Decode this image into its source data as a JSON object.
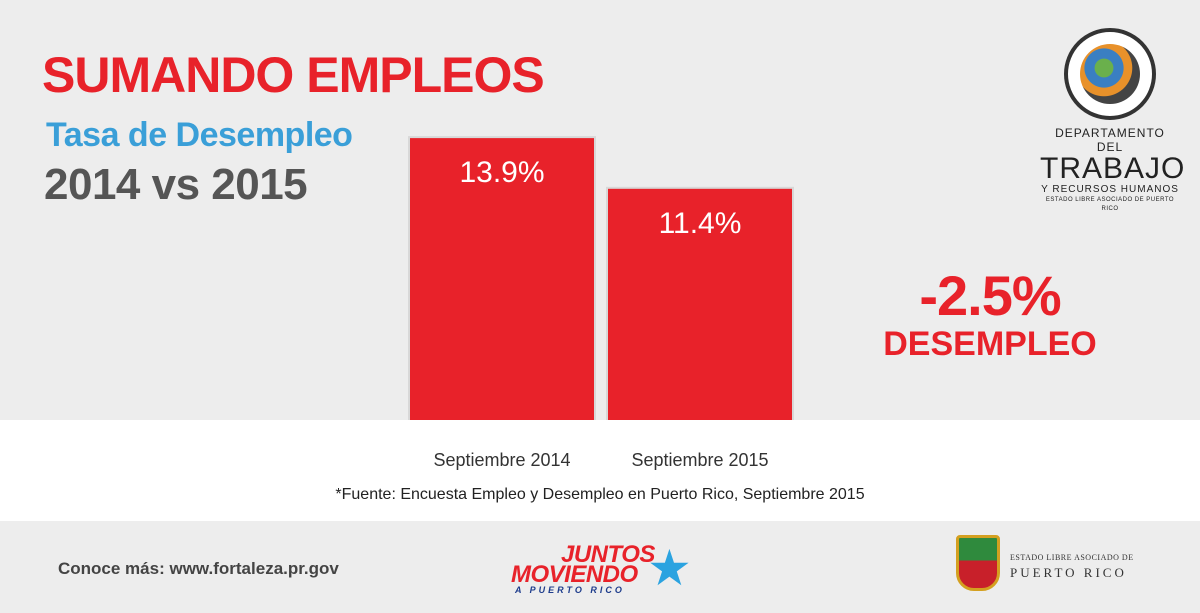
{
  "header": {
    "title": "SUMANDO EMPLEOS",
    "subtitle": "Tasa de Desempleo",
    "years": "2014 vs 2015"
  },
  "chart_data": {
    "type": "bar",
    "categories": [
      "Septiembre 2014",
      "Septiembre 2015"
    ],
    "values": [
      13.9,
      11.4
    ],
    "value_labels": [
      "13.9%",
      "11.4%"
    ],
    "title": "Tasa de Desempleo",
    "ylim": [
      0,
      14.3
    ],
    "grid": false,
    "bar_color": "#e8222a"
  },
  "callout": {
    "value": "-2.5%",
    "label": "DESEMPLEO"
  },
  "source": "*Fuente: Encuesta Empleo y Desempleo en Puerto Rico, Septiembre 2015",
  "footer": {
    "more": "Conoce más: www.fortaleza.pr.gov",
    "juntos_line1": "JUNTOS",
    "juntos_line2": "MOVIENDO",
    "juntos_line3": "A PUERTO RICO",
    "pr_line1": "ESTADO LIBRE ASOCIADO DE",
    "pr_line2": "PUERTO RICO"
  },
  "department": {
    "line1": "DEPARTAMENTO DEL",
    "line2": "TRABAJO",
    "line3": "Y RECURSOS HUMANOS",
    "line4": "ESTADO LIBRE ASOCIADO DE PUERTO RICO"
  },
  "colors": {
    "accent_red": "#e8222a",
    "accent_blue": "#3a9fd8",
    "text_gray": "#555555",
    "band_gray": "#ededed"
  }
}
